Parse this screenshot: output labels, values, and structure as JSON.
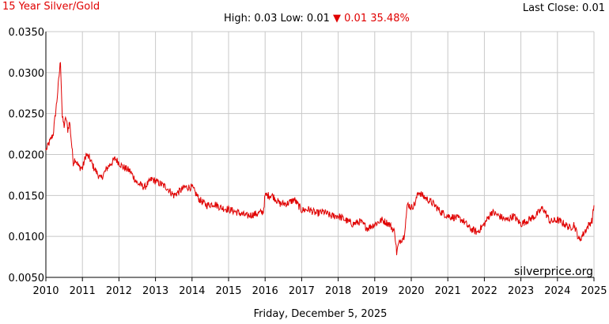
{
  "header": {
    "title": "15 Year Silver/Gold",
    "last_close_label": "Last Close:",
    "last_close_value": "0.01",
    "high_label": "High:",
    "high_value": "0.03",
    "low_label": "Low:",
    "low_value": "0.01",
    "change_arrow": "▼",
    "change_value": "0.01",
    "change_percent": "35.48%"
  },
  "watermark": "silverprice.org",
  "footer": {
    "date": "Friday, December 5, 2025"
  },
  "colors": {
    "line": "#e00000",
    "title": "#e00000",
    "grid": "#c8c8c8",
    "axis": "#000000"
  },
  "chart_data": {
    "type": "line",
    "title": "15 Year Silver/Gold",
    "xlabel": "",
    "ylabel": "",
    "xlim": [
      2010,
      2025
    ],
    "ylim": [
      0.005,
      0.035
    ],
    "grid": true,
    "x_ticks": [
      "2010",
      "2011",
      "2012",
      "2013",
      "2014",
      "2015",
      "2016",
      "2017",
      "2018",
      "2019",
      "2020",
      "2021",
      "2022",
      "2023",
      "2024",
      "2025"
    ],
    "y_ticks": [
      "0.0050",
      "0.0100",
      "0.0150",
      "0.0200",
      "0.0250",
      "0.0300",
      "0.0350"
    ],
    "series": [
      {
        "x": [
          2010.0,
          2010.1,
          2010.2,
          2010.3,
          2010.4,
          2010.45,
          2010.5,
          2010.55,
          2010.6,
          2010.65,
          2010.7,
          2010.75,
          2010.8,
          2010.9,
          2011.0,
          2011.1,
          2011.2,
          2011.3,
          2011.5,
          2011.7,
          2011.9,
          2012.1,
          2012.3,
          2012.5,
          2012.7,
          2012.9,
          2013.1,
          2013.3,
          2013.5,
          2013.8,
          2014.0,
          2014.2,
          2014.4,
          2014.6,
          2014.8,
          2015.0,
          2015.2,
          2015.5,
          2015.8,
          2015.95,
          2016.0,
          2016.2,
          2016.4,
          2016.6,
          2016.8,
          2017.0,
          2017.2,
          2017.4,
          2017.6,
          2017.8,
          2018.0,
          2018.2,
          2018.4,
          2018.6,
          2018.8,
          2019.0,
          2019.2,
          2019.4,
          2019.55,
          2019.6,
          2019.65,
          2019.7,
          2019.8,
          2019.9,
          2020.0,
          2020.1,
          2020.2,
          2020.3,
          2020.45,
          2020.6,
          2020.8,
          2021.0,
          2021.2,
          2021.4,
          2021.6,
          2021.8,
          2022.0,
          2022.2,
          2022.4,
          2022.6,
          2022.8,
          2023.0,
          2023.2,
          2023.4,
          2023.6,
          2023.8,
          2024.0,
          2024.2,
          2024.35,
          2024.45,
          2024.6,
          2024.8,
          2024.95,
          2025.0
        ],
        "y": [
          0.0205,
          0.0215,
          0.0225,
          0.0265,
          0.0315,
          0.0245,
          0.0235,
          0.0245,
          0.023,
          0.024,
          0.0215,
          0.019,
          0.0195,
          0.0185,
          0.0183,
          0.02,
          0.0195,
          0.0185,
          0.017,
          0.0185,
          0.0195,
          0.0185,
          0.018,
          0.0165,
          0.016,
          0.017,
          0.0165,
          0.016,
          0.015,
          0.016,
          0.016,
          0.0145,
          0.0138,
          0.014,
          0.0135,
          0.0133,
          0.013,
          0.0125,
          0.0128,
          0.013,
          0.015,
          0.015,
          0.014,
          0.014,
          0.0145,
          0.0132,
          0.0133,
          0.0128,
          0.013,
          0.0125,
          0.0125,
          0.012,
          0.0115,
          0.0118,
          0.011,
          0.0115,
          0.012,
          0.0115,
          0.0105,
          0.008,
          0.009,
          0.0095,
          0.01,
          0.014,
          0.0135,
          0.014,
          0.0155,
          0.015,
          0.0145,
          0.014,
          0.013,
          0.0125,
          0.0123,
          0.012,
          0.011,
          0.0105,
          0.0115,
          0.013,
          0.0125,
          0.012,
          0.0125,
          0.0115,
          0.012,
          0.0125,
          0.0135,
          0.0118,
          0.012,
          0.0115,
          0.011,
          0.0115,
          0.0095,
          0.011,
          0.012,
          0.0138
        ]
      }
    ]
  }
}
